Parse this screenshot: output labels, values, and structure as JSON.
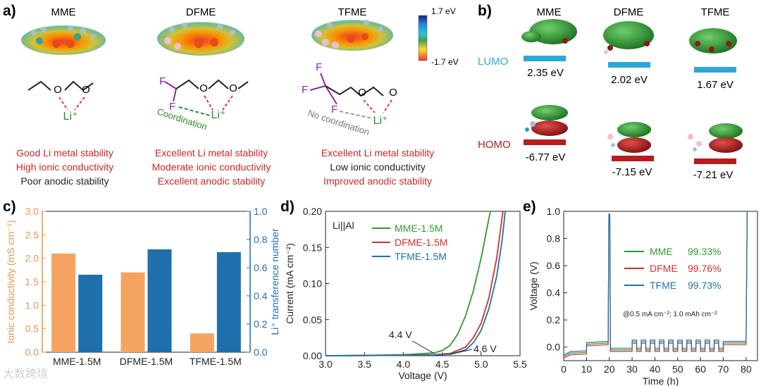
{
  "panel_labels": [
    "a)",
    "b)",
    "c)",
    "d)",
    "e)"
  ],
  "panel_a": {
    "molecules": [
      {
        "name": "MME",
        "li_label": "Li⁺",
        "coord_label": "",
        "notes": [
          {
            "text": "Good Li metal stability",
            "color": "#c62828"
          },
          {
            "text": "High ionic conductivity",
            "color": "#c62828"
          },
          {
            "text": "Poor anodic stability",
            "color": "#222222"
          }
        ]
      },
      {
        "name": "DFME",
        "li_label": "Li⁺",
        "coord_label": "Coordination",
        "notes": [
          {
            "text": "Excellent Li metal stability",
            "color": "#c62828"
          },
          {
            "text": "Moderate ionic conductivity",
            "color": "#c62828"
          },
          {
            "text": "Excellent anodic stability",
            "color": "#c62828"
          }
        ]
      },
      {
        "name": "TFME",
        "li_label": "Li⁺",
        "coord_label": "No coordination",
        "notes": [
          {
            "text": "Excellent Li metal stability",
            "color": "#c62828"
          },
          {
            "text": "Low ionic conductivity",
            "color": "#222222"
          },
          {
            "text": "Improved anodic stability",
            "color": "#c62828"
          }
        ]
      }
    ],
    "atom_label_f": "F",
    "atom_label_o": "O",
    "colorbar": {
      "max": "1.7 eV",
      "min": "-1.7 eV"
    }
  },
  "panel_b": {
    "columns": [
      "MME",
      "DFME",
      "TFME"
    ],
    "lumo_label": "LUMO",
    "homo_label": "HOMO",
    "lumo_values": [
      "2.35 eV",
      "2.02 eV",
      "1.67 eV"
    ],
    "homo_values": [
      "-6.77 eV",
      "-7.15 eV",
      "-7.21 eV"
    ],
    "lumo_color": "#2aa8d8",
    "homo_color": "#b71c1c"
  },
  "chart_data": [
    {
      "id": "c",
      "type": "bar",
      "categories": [
        "MME-1.5M",
        "DFME-1.5M",
        "TFME-1.5M"
      ],
      "series": [
        {
          "name": "",
          "axis": "left",
          "color": "#f4a460",
          "values": [
            2.1,
            1.7,
            0.4
          ]
        },
        {
          "name": "",
          "axis": "right",
          "color": "#1f6fad",
          "values": [
            0.55,
            0.73,
            0.71
          ]
        }
      ],
      "ylabel": "Ionic conductivity (mS cm⁻¹)",
      "y2label": "Li⁺ transference number",
      "ylim": [
        0,
        3.0
      ],
      "y2lim": [
        0,
        1.0
      ],
      "yticks": [
        "0.0",
        "0.5",
        "1.0",
        "1.5",
        "2.0",
        "2.5",
        "3.0"
      ],
      "y2ticks": [
        "0.0",
        "0.2",
        "0.4",
        "0.6",
        "0.8",
        "1.0"
      ],
      "left_axis_color": "#e8964a",
      "right_axis_color": "#1f6fad"
    },
    {
      "id": "d",
      "type": "line",
      "title": "",
      "inset_label": "Li||Al",
      "xlabel": "Voltage (V)",
      "ylabel": "Current (mA cm⁻²)",
      "xlim": [
        3.0,
        5.5
      ],
      "ylim": [
        0.0,
        0.2
      ],
      "xticks": [
        "3.0",
        "3.5",
        "4.0",
        "4.5",
        "5.0",
        "5.5"
      ],
      "yticks": [
        "0.00",
        "0.05",
        "0.10",
        "0.15",
        "0.20"
      ],
      "legend": "top-right",
      "annotations": [
        {
          "text": "4.4 V",
          "x": 4.4,
          "y": 0.0
        },
        {
          "text": "4.6 V",
          "x": 4.6,
          "y": 0.0
        }
      ],
      "series": [
        {
          "name": "MME-1.5M",
          "color": "#2e9a2e",
          "points": [
            [
              3.0,
              0.0
            ],
            [
              3.5,
              0.0005
            ],
            [
              4.0,
              0.0015
            ],
            [
              4.2,
              0.0025
            ],
            [
              4.4,
              0.004
            ],
            [
              4.5,
              0.007
            ],
            [
              4.6,
              0.014
            ],
            [
              4.7,
              0.03
            ],
            [
              4.8,
              0.055
            ],
            [
              4.9,
              0.09
            ],
            [
              5.0,
              0.135
            ],
            [
              5.1,
              0.19
            ],
            [
              5.12,
              0.2
            ]
          ]
        },
        {
          "name": "DFME-1.5M",
          "color": "#d32f2f",
          "points": [
            [
              3.0,
              0.0
            ],
            [
              3.5,
              0.0003
            ],
            [
              4.0,
              0.0008
            ],
            [
              4.4,
              0.0015
            ],
            [
              4.6,
              0.003
            ],
            [
              4.8,
              0.012
            ],
            [
              4.9,
              0.025
            ],
            [
              5.0,
              0.045
            ],
            [
              5.1,
              0.08
            ],
            [
              5.2,
              0.135
            ],
            [
              5.25,
              0.175
            ],
            [
              5.28,
              0.2
            ]
          ]
        },
        {
          "name": "TFME-1.5M",
          "color": "#1f6fad",
          "points": [
            [
              3.0,
              0.0
            ],
            [
              3.5,
              0.0002
            ],
            [
              4.0,
              0.0006
            ],
            [
              4.4,
              0.001
            ],
            [
              4.6,
              0.002
            ],
            [
              4.8,
              0.008
            ],
            [
              4.9,
              0.018
            ],
            [
              5.0,
              0.035
            ],
            [
              5.1,
              0.065
            ],
            [
              5.2,
              0.11
            ],
            [
              5.27,
              0.16
            ],
            [
              5.31,
              0.2
            ]
          ]
        }
      ]
    },
    {
      "id": "e",
      "type": "line",
      "xlabel": "Time (h)",
      "ylabel": "Voltage (V)",
      "xlim": [
        0,
        85
      ],
      "ylim": [
        -0.1,
        1.0
      ],
      "xticks": [
        "0",
        "10",
        "20",
        "30",
        "40",
        "50",
        "60",
        "70",
        "80"
      ],
      "yticks": [
        "0.0",
        "0.2",
        "0.4",
        "0.6",
        "0.8",
        "1.0"
      ],
      "legend": "center-left",
      "annotation": "@0.5 mA cm⁻²; 1.0 mAh cm⁻²",
      "series": [
        {
          "name": "MME",
          "value_label": "99.33%",
          "color": "#2e9a2e"
        },
        {
          "name": "DFME",
          "value_label": "99.76%",
          "color": "#d32f2f"
        },
        {
          "name": "TFME",
          "value_label": "99.73%",
          "color": "#1f6fad"
        }
      ]
    }
  ],
  "watermark": "大数跨境"
}
